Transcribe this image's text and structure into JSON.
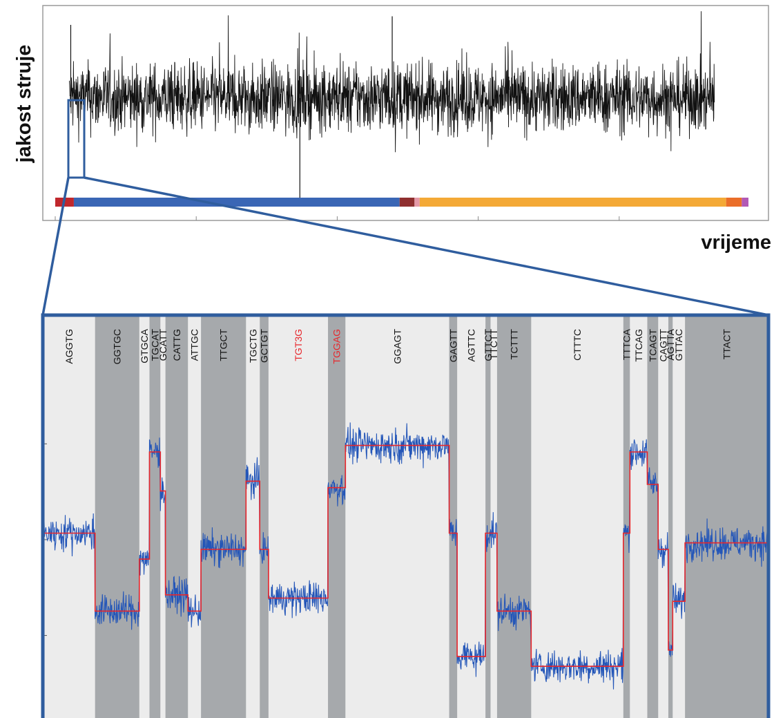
{
  "chart_data": [
    {
      "type": "line",
      "panel": "overview",
      "ylabel": "jakost struje",
      "xlabel": "vrijeme",
      "xlim": [
        0,
        100
      ],
      "ylim": [
        0,
        100
      ],
      "trace": {
        "color": "#111111",
        "baseline": 57,
        "noise": 8,
        "start": 2,
        "end": 93.5,
        "spikes": [
          {
            "x": 2.2,
            "y": 91
          },
          {
            "x": 47.8,
            "y": 95
          },
          {
            "x": 34.7,
            "y": 8
          }
        ]
      },
      "segments_bar": [
        {
          "from": 0,
          "to": 2.5,
          "color": "#c0272d"
        },
        {
          "from": 2.5,
          "to": 46.3,
          "color": "#3a66b5"
        },
        {
          "from": 46.3,
          "to": 48.3,
          "color": "#8f2f2f"
        },
        {
          "from": 48.3,
          "to": 49.0,
          "color": "#e59aa8"
        },
        {
          "from": 49.0,
          "to": 90.2,
          "color": "#f4a936"
        },
        {
          "from": 90.2,
          "to": 92.3,
          "color": "#ea6e29"
        },
        {
          "from": 92.3,
          "to": 93.2,
          "color": "#b259b5"
        }
      ],
      "zoom_window": [
        1.8,
        4.1
      ],
      "grid": false
    },
    {
      "type": "line",
      "panel": "zoom",
      "xlim": [
        0,
        100
      ],
      "ylim": [
        0,
        100
      ],
      "signal_color": "#2456b8",
      "fit_color": "#e8262b",
      "kmers": [
        {
          "label": "AGGTG",
          "from": 0.0,
          "to": 7.2,
          "level": 55,
          "shade": "light",
          "red": false
        },
        {
          "label": "GGTGC",
          "from": 7.2,
          "to": 13.3,
          "level": 31,
          "shade": "dark",
          "red": false
        },
        {
          "label": "GTGCA",
          "from": 13.3,
          "to": 14.7,
          "level": 47,
          "shade": "light",
          "red": false
        },
        {
          "label": "TGCAT",
          "from": 14.7,
          "to": 16.2,
          "level": 80,
          "shade": "dark",
          "red": false
        },
        {
          "label": "GCATT",
          "from": 16.2,
          "to": 16.9,
          "level": 68,
          "shade": "light",
          "red": false
        },
        {
          "label": "CATTG",
          "from": 16.9,
          "to": 20.0,
          "level": 36,
          "shade": "dark",
          "red": false
        },
        {
          "label": "ATTGC",
          "from": 20.0,
          "to": 21.8,
          "level": 31,
          "shade": "light",
          "red": false
        },
        {
          "label": "TTGCT",
          "from": 21.8,
          "to": 28.0,
          "level": 50,
          "shade": "dark",
          "red": false
        },
        {
          "label": "TGCTG",
          "from": 28.0,
          "to": 29.9,
          "level": 71,
          "shade": "light",
          "red": false
        },
        {
          "label": "GCTGT",
          "from": 29.9,
          "to": 31.1,
          "level": 50,
          "shade": "dark",
          "red": false
        },
        {
          "label": "TGT3G",
          "from": 31.1,
          "to": 39.3,
          "level": 35,
          "shade": "light",
          "red": true
        },
        {
          "label": "TGGAG",
          "from": 39.3,
          "to": 41.7,
          "level": 69,
          "shade": "dark",
          "red": true
        },
        {
          "label": "GGAGT",
          "from": 41.7,
          "to": 56.0,
          "level": 82,
          "shade": "light",
          "red": false
        },
        {
          "label": "GAGTT",
          "from": 56.0,
          "to": 57.1,
          "level": 55,
          "shade": "dark",
          "red": false
        },
        {
          "label": "AGTTC",
          "from": 57.1,
          "to": 61.0,
          "level": 17,
          "shade": "light",
          "red": false
        },
        {
          "label": "GTTCT",
          "from": 61.0,
          "to": 61.7,
          "level": 55,
          "shade": "dark",
          "red": false
        },
        {
          "label": "TTCTT",
          "from": 61.7,
          "to": 62.6,
          "level": 55,
          "shade": "light",
          "red": false
        },
        {
          "label": "TCTTT",
          "from": 62.6,
          "to": 67.3,
          "level": 31,
          "shade": "dark",
          "red": false
        },
        {
          "label": "CTTTC",
          "from": 67.3,
          "to": 80.0,
          "level": 14,
          "shade": "light",
          "red": false
        },
        {
          "label": "TTTCA",
          "from": 80.0,
          "to": 80.9,
          "level": 55,
          "shade": "dark",
          "red": false
        },
        {
          "label": "TTCAG",
          "from": 80.9,
          "to": 83.3,
          "level": 80,
          "shade": "light",
          "red": false
        },
        {
          "label": "TCAGT",
          "from": 83.3,
          "to": 84.8,
          "level": 70,
          "shade": "dark",
          "red": false
        },
        {
          "label": "CAGTT",
          "from": 84.8,
          "to": 86.2,
          "level": 50,
          "shade": "light",
          "red": false
        },
        {
          "label": "AGTTA",
          "from": 86.2,
          "to": 86.8,
          "level": 19,
          "shade": "dark",
          "red": false
        },
        {
          "label": "GTTAC",
          "from": 86.8,
          "to": 88.5,
          "level": 34,
          "shade": "light",
          "red": false
        },
        {
          "label": "TTACT",
          "from": 88.5,
          "to": 100.0,
          "level": 52,
          "shade": "dark",
          "red": false
        }
      ],
      "grid": false
    }
  ],
  "colors": {
    "frame": "#2f5d9e",
    "light_band": "#ececec",
    "dark_band": "#a6a9ac",
    "overview_border": "#9a9a9a"
  }
}
